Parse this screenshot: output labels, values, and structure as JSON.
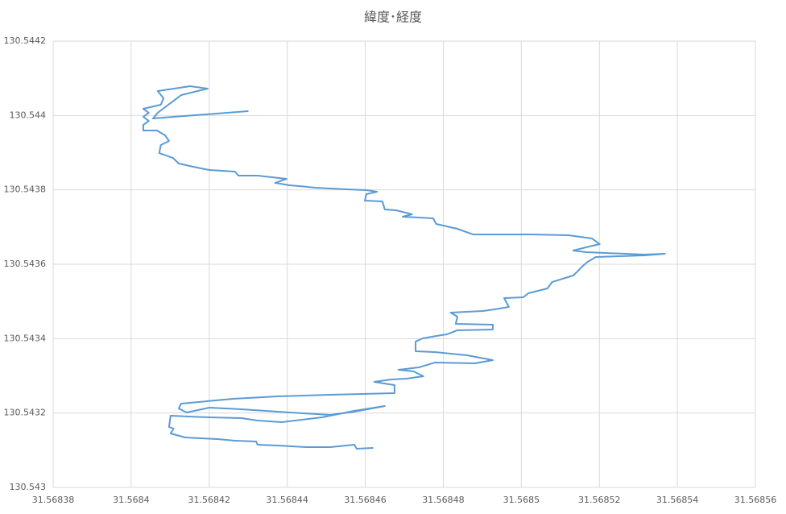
{
  "chart_data": {
    "type": "line",
    "title": "緯度･経度",
    "color": "#5b9bd5",
    "grid": true,
    "xlim": [
      31.56838,
      31.56856
    ],
    "xticks": [
      31.56838,
      31.5684,
      31.56842,
      31.56844,
      31.56846,
      31.56848,
      31.5685,
      31.56852,
      31.56854,
      31.56856
    ],
    "ylim": [
      130.543,
      130.5442
    ],
    "yticks": [
      130.543,
      130.5432,
      130.5434,
      130.5436,
      130.5438,
      130.544,
      130.5442
    ],
    "x": [
      31.5684299,
      31.5684056,
      31.5684068,
      31.5684128,
      31.5684196,
      31.5684151,
      31.5684068,
      31.5684083,
      31.5684076,
      31.5684031,
      31.5684045,
      31.5684031,
      31.5684045,
      31.5684031,
      31.5684031,
      31.5684066,
      31.5684087,
      31.5684097,
      31.5684076,
      31.5684072,
      31.5684107,
      31.5684122,
      31.5684159,
      31.56842,
      31.5684266,
      31.5684275,
      31.5684324,
      31.5684398,
      31.5684369,
      31.5684407,
      31.5684473,
      31.5684551,
      31.5684603,
      31.568463,
      31.5684603,
      31.5684599,
      31.5684644,
      31.568465,
      31.5684679,
      31.568472,
      31.5684696,
      31.5684737,
      31.5684774,
      31.5684782,
      31.5684836,
      31.5684877,
      31.5684964,
      31.5685026,
      31.5685121,
      31.5685181,
      31.5685201,
      31.5685174,
      31.5685133,
      31.5685166,
      31.5685315,
      31.5685368,
      31.5685315,
      31.5685191,
      31.568517,
      31.5685158,
      31.5685146,
      31.5685133,
      31.5685079,
      31.5685067,
      31.5685018,
      31.5685005,
      31.5684956,
      31.5684968,
      31.5684931,
      31.5684902,
      31.5684819,
      31.5684836,
      31.5684832,
      31.5684927,
      31.5684927,
      31.5684836,
      31.5684809,
      31.5684782,
      31.5684747,
      31.5684729,
      31.5684729,
      31.5684778,
      31.5684861,
      31.5684927,
      31.5684881,
      31.5684778,
      31.5684737,
      31.5684685,
      31.5684724,
      31.5684749,
      31.5684706,
      31.5684667,
      31.5684623,
      31.5684675,
      31.5684675,
      31.568451,
      31.5684374,
      31.5684262,
      31.5684128,
      31.5684122,
      31.5684142,
      31.56842,
      31.5684283,
      31.5684407,
      31.568451,
      31.5684572,
      31.568465,
      31.5684572,
      31.5684489,
      31.5684386,
      31.5684324,
      31.5684283,
      31.56842,
      31.5684101,
      31.5684097,
      31.5684109,
      31.5684101,
      31.5684138,
      31.5684221,
      31.5684266,
      31.568432,
      31.5684324,
      31.5684376,
      31.5684448,
      31.568451,
      31.5684572,
      31.5684578,
      31.5684619
    ],
    "values": [
      130.5440115,
      130.543992,
      130.5440072,
      130.5440548,
      130.5440722,
      130.5440787,
      130.5440657,
      130.5440462,
      130.5440289,
      130.544018,
      130.5440072,
      130.5439964,
      130.5439855,
      130.5439747,
      130.5439595,
      130.5439595,
      130.5439465,
      130.5439314,
      130.5439206,
      130.5438989,
      130.5438859,
      130.5438707,
      130.5438621,
      130.5438534,
      130.5438491,
      130.5438382,
      130.5438382,
      130.5438296,
      130.5438187,
      130.5438123,
      130.5438058,
      130.5438014,
      130.5437993,
      130.5437949,
      130.5437884,
      130.5437711,
      130.5437689,
      130.5437473,
      130.5437451,
      130.5437343,
      130.5437278,
      130.5437256,
      130.5437234,
      130.5437083,
      130.5436953,
      130.5436801,
      130.5436801,
      130.5436801,
      130.543678,
      130.5436693,
      130.5436541,
      130.5436476,
      130.5436368,
      130.5436325,
      130.543626,
      130.5436281,
      130.5436238,
      130.5436195,
      130.5436065,
      130.5435957,
      130.5435827,
      130.5435697,
      130.5435523,
      130.543535,
      130.543522,
      130.5435112,
      130.543509,
      130.5434852,
      130.5434787,
      130.5434744,
      130.54347,
      130.5434592,
      130.5434397,
      130.5434375,
      130.5434245,
      130.5434224,
      130.5434115,
      130.5434072,
      130.5434007,
      130.543392,
      130.5433661,
      130.5433639,
      130.5433552,
      130.5433422,
      130.5433336,
      130.5433357,
      130.5433227,
      130.5433162,
      130.5433119,
      130.5432989,
      130.5432924,
      130.5432902,
      130.5432837,
      130.5432751,
      130.5432534,
      130.5432491,
      130.5432448,
      130.5432383,
      130.5432253,
      130.5432123,
      130.5432014,
      130.5432144,
      130.5432101,
      130.5432014,
      130.5431949,
      130.5432036,
      130.5432188,
      130.5432058,
      130.5431884,
      130.5431754,
      130.5431798,
      130.5431863,
      130.5431884,
      130.5431928,
      130.5431625,
      130.5431581,
      130.5431451,
      130.5431343,
      130.54313,
      130.5431256,
      130.5431235,
      130.5431148,
      130.5431126,
      130.5431083,
      130.5431083,
      130.5431148,
      130.543104,
      130.5431061
    ]
  }
}
